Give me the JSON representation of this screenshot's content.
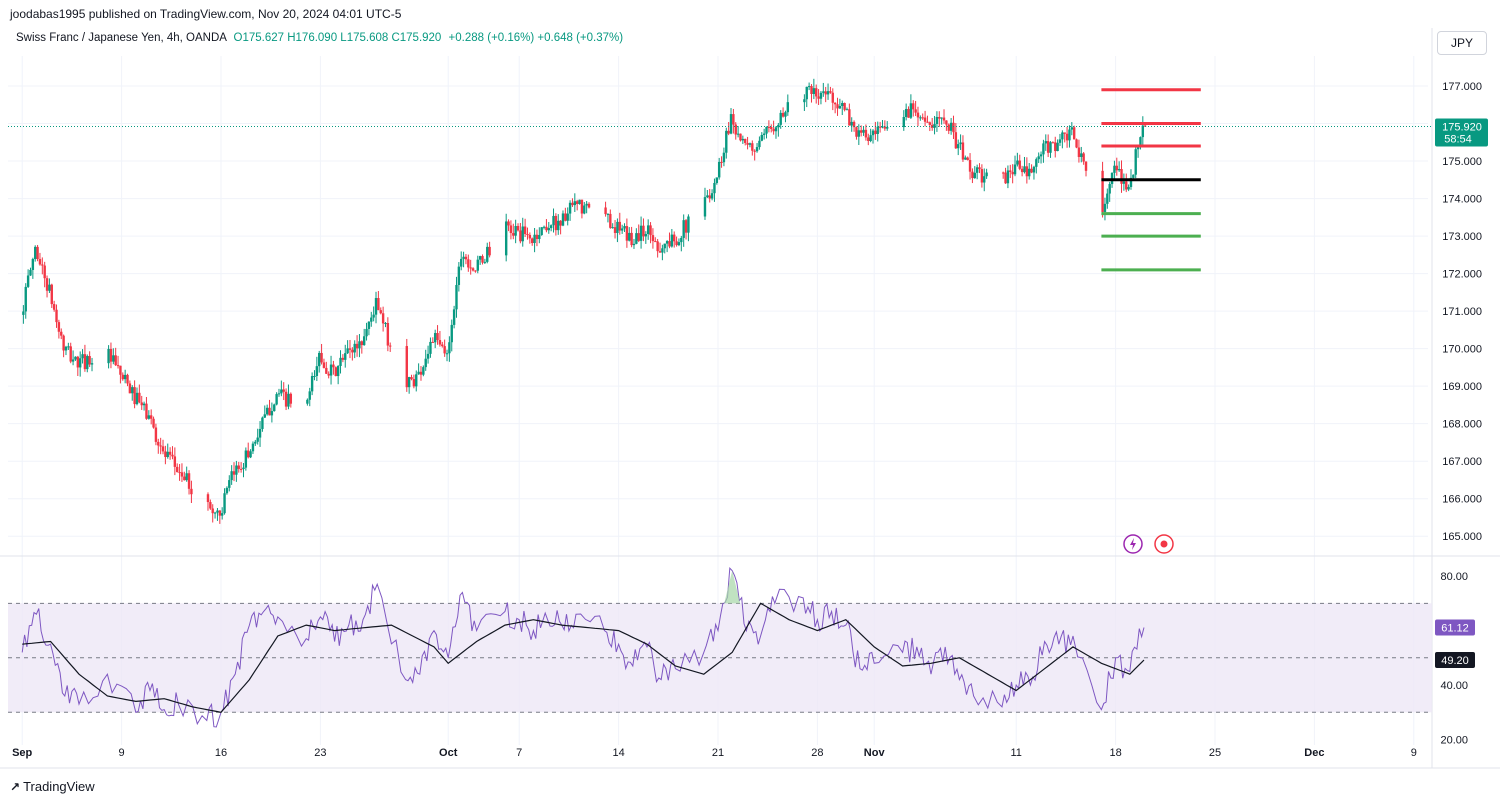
{
  "header": {
    "publisher_line": "joodabas1995 published on TradingView.com, Nov 20, 2024 04:01 UTC-5"
  },
  "legend": {
    "symbol": "Swiss Franc / Japanese Yen, 4h, OANDA",
    "ohlc": "O175.627 H176.090 L175.608 C175.920",
    "change": "+0.288 (+0.16%) +0.648 (+0.37%)"
  },
  "currency_button": "JPY",
  "footer": {
    "brand": "TradingView"
  },
  "colors": {
    "up": "#089981",
    "down": "#f23645",
    "rsi": "#7e57c2",
    "rsi_ma": "#131722",
    "rsi_band": "#ede7f6",
    "level_red": "#f23645",
    "level_green": "#4caf50",
    "level_black": "#000000"
  },
  "icons": [
    "lightning-icon",
    "record-icon",
    "tradingview-logo-icon"
  ],
  "chart_data": [
    {
      "type": "candlestick",
      "title": "",
      "symbol": "CHFJPY",
      "timeframe": "4h",
      "ylim": [
        164.5,
        177.8
      ],
      "y_ticks": [
        "165.000",
        "166.000",
        "167.000",
        "168.000",
        "169.000",
        "170.000",
        "171.000",
        "172.000",
        "173.000",
        "174.000",
        "175.000",
        "176.000",
        "177.000"
      ],
      "x_ticks": [
        "Sep",
        "9",
        "16",
        "23",
        "Oct",
        "7",
        "14",
        "21",
        "28",
        "Nov",
        "11",
        "18",
        "25",
        "Dec",
        "9"
      ],
      "last_price": {
        "value": "175.920",
        "countdown": "58:54"
      },
      "path_anchors": [
        {
          "x": "2024-09-02",
          "y": 170.9
        },
        {
          "x": "2024-09-03",
          "y": 172.7
        },
        {
          "x": "2024-09-04",
          "y": 171.5
        },
        {
          "x": "2024-09-05",
          "y": 170.0
        },
        {
          "x": "2024-09-06",
          "y": 169.6
        },
        {
          "x": "2024-09-08",
          "y": 169.9
        },
        {
          "x": "2024-09-10",
          "y": 168.7
        },
        {
          "x": "2024-09-11",
          "y": 168.2
        },
        {
          "x": "2024-09-12",
          "y": 167.2
        },
        {
          "x": "2024-09-13",
          "y": 166.8
        },
        {
          "x": "2024-09-15",
          "y": 165.8
        },
        {
          "x": "2024-09-16",
          "y": 165.6
        },
        {
          "x": "2024-09-17",
          "y": 166.7
        },
        {
          "x": "2024-09-18",
          "y": 167.2
        },
        {
          "x": "2024-09-19",
          "y": 168.0
        },
        {
          "x": "2024-09-20",
          "y": 168.8
        },
        {
          "x": "2024-09-22",
          "y": 168.3
        },
        {
          "x": "2024-09-23",
          "y": 169.8
        },
        {
          "x": "2024-09-24",
          "y": 169.3
        },
        {
          "x": "2024-09-25",
          "y": 169.9
        },
        {
          "x": "2024-09-26",
          "y": 170.2
        },
        {
          "x": "2024-09-27",
          "y": 171.2
        },
        {
          "x": "2024-09-29",
          "y": 169.0
        },
        {
          "x": "2024-09-30",
          "y": 169.3
        },
        {
          "x": "2024-10-01",
          "y": 170.3
        },
        {
          "x": "2024-10-02",
          "y": 169.8
        },
        {
          "x": "2024-10-03",
          "y": 172.6
        },
        {
          "x": "2024-10-04",
          "y": 172.1
        },
        {
          "x": "2024-10-06",
          "y": 173.2
        },
        {
          "x": "2024-10-07",
          "y": 173.1
        },
        {
          "x": "2024-10-08",
          "y": 172.9
        },
        {
          "x": "2024-10-09",
          "y": 173.3
        },
        {
          "x": "2024-10-10",
          "y": 173.4
        },
        {
          "x": "2024-10-11",
          "y": 173.8
        },
        {
          "x": "2024-10-13",
          "y": 173.6
        },
        {
          "x": "2024-10-14",
          "y": 173.2
        },
        {
          "x": "2024-10-15",
          "y": 172.9
        },
        {
          "x": "2024-10-16",
          "y": 173.2
        },
        {
          "x": "2024-10-17",
          "y": 172.7
        },
        {
          "x": "2024-10-18",
          "y": 172.9
        },
        {
          "x": "2024-10-20",
          "y": 173.8
        },
        {
          "x": "2024-10-21",
          "y": 174.6
        },
        {
          "x": "2024-10-22",
          "y": 176.2
        },
        {
          "x": "2024-10-23",
          "y": 175.3
        },
        {
          "x": "2024-10-24",
          "y": 175.4
        },
        {
          "x": "2024-10-25",
          "y": 176.0
        },
        {
          "x": "2024-10-27",
          "y": 176.9
        },
        {
          "x": "2024-10-28",
          "y": 176.7
        },
        {
          "x": "2024-10-29",
          "y": 176.8
        },
        {
          "x": "2024-10-30",
          "y": 176.3
        },
        {
          "x": "2024-10-31",
          "y": 175.7
        },
        {
          "x": "2024-11-01",
          "y": 175.6
        },
        {
          "x": "2024-11-03",
          "y": 176.2
        },
        {
          "x": "2024-11-04",
          "y": 176.5
        },
        {
          "x": "2024-11-05",
          "y": 175.8
        },
        {
          "x": "2024-11-06",
          "y": 176.3
        },
        {
          "x": "2024-11-07",
          "y": 175.4
        },
        {
          "x": "2024-11-08",
          "y": 174.7
        },
        {
          "x": "2024-11-10",
          "y": 174.4
        },
        {
          "x": "2024-11-11",
          "y": 174.9
        },
        {
          "x": "2024-11-12",
          "y": 174.6
        },
        {
          "x": "2024-11-13",
          "y": 175.3
        },
        {
          "x": "2024-11-14",
          "y": 175.5
        },
        {
          "x": "2024-11-15",
          "y": 175.7
        },
        {
          "x": "2024-11-17",
          "y": 173.7
        },
        {
          "x": "2024-11-18",
          "y": 174.7
        },
        {
          "x": "2024-11-19",
          "y": 174.3
        },
        {
          "x": "2024-11-20",
          "y": 175.92
        }
      ],
      "levels": [
        {
          "price": 176.9,
          "color": "red",
          "from": "2024-11-17",
          "to": "2024-11-24"
        },
        {
          "price": 176.0,
          "color": "red",
          "from": "2024-11-17",
          "to": "2024-11-24"
        },
        {
          "price": 175.4,
          "color": "red",
          "from": "2024-11-17",
          "to": "2024-11-24"
        },
        {
          "price": 174.5,
          "color": "black",
          "from": "2024-11-17",
          "to": "2024-11-24"
        },
        {
          "price": 173.6,
          "color": "green",
          "from": "2024-11-17",
          "to": "2024-11-24"
        },
        {
          "price": 173.0,
          "color": "green",
          "from": "2024-11-17",
          "to": "2024-11-24"
        },
        {
          "price": 172.1,
          "color": "green",
          "from": "2024-11-17",
          "to": "2024-11-24"
        }
      ]
    },
    {
      "type": "line",
      "title": "",
      "ylim": [
        18,
        87
      ],
      "y_ticks": [
        "20.00",
        "40.00",
        "60.00",
        "80.00"
      ],
      "band": {
        "upper": 70,
        "middle": 50,
        "lower": 30
      },
      "last_values": {
        "rsi": "61.12",
        "rsi_ma": "49.20"
      },
      "series": [
        {
          "values": [
            {
              "x": "2024-09-02",
              "y": 52
            },
            {
              "x": "2024-09-03",
              "y": 66
            },
            {
              "x": "2024-09-04",
              "y": 55
            },
            {
              "x": "2024-09-05",
              "y": 36
            },
            {
              "x": "2024-09-06",
              "y": 33
            },
            {
              "x": "2024-09-08",
              "y": 44
            },
            {
              "x": "2024-09-10",
              "y": 30
            },
            {
              "x": "2024-09-11",
              "y": 38
            },
            {
              "x": "2024-09-12",
              "y": 31
            },
            {
              "x": "2024-09-13",
              "y": 33
            },
            {
              "x": "2024-09-15",
              "y": 27
            },
            {
              "x": "2024-09-16",
              "y": 30
            },
            {
              "x": "2024-09-17",
              "y": 44
            },
            {
              "x": "2024-09-18",
              "y": 62
            },
            {
              "x": "2024-09-19",
              "y": 67
            },
            {
              "x": "2024-09-20",
              "y": 65
            },
            {
              "x": "2024-09-22",
              "y": 57
            },
            {
              "x": "2024-09-23",
              "y": 65
            },
            {
              "x": "2024-09-24",
              "y": 56
            },
            {
              "x": "2024-09-25",
              "y": 62
            },
            {
              "x": "2024-09-26",
              "y": 64
            },
            {
              "x": "2024-09-27",
              "y": 77
            },
            {
              "x": "2024-09-29",
              "y": 42
            },
            {
              "x": "2024-09-30",
              "y": 44
            },
            {
              "x": "2024-10-01",
              "y": 60
            },
            {
              "x": "2024-10-02",
              "y": 50
            },
            {
              "x": "2024-10-03",
              "y": 74
            },
            {
              "x": "2024-10-04",
              "y": 60
            },
            {
              "x": "2024-10-06",
              "y": 67
            },
            {
              "x": "2024-10-07",
              "y": 64
            },
            {
              "x": "2024-10-08",
              "y": 60
            },
            {
              "x": "2024-10-09",
              "y": 64
            },
            {
              "x": "2024-10-10",
              "y": 62
            },
            {
              "x": "2024-10-11",
              "y": 66
            },
            {
              "x": "2024-10-13",
              "y": 60
            },
            {
              "x": "2024-10-14",
              "y": 55
            },
            {
              "x": "2024-10-15",
              "y": 47
            },
            {
              "x": "2024-10-16",
              "y": 54
            },
            {
              "x": "2024-10-17",
              "y": 42
            },
            {
              "x": "2024-10-18",
              "y": 46
            },
            {
              "x": "2024-10-20",
              "y": 52
            },
            {
              "x": "2024-10-21",
              "y": 60
            },
            {
              "x": "2024-10-22",
              "y": 82
            },
            {
              "x": "2024-10-23",
              "y": 60
            },
            {
              "x": "2024-10-24",
              "y": 58
            },
            {
              "x": "2024-10-25",
              "y": 70
            },
            {
              "x": "2024-10-27",
              "y": 72
            },
            {
              "x": "2024-10-28",
              "y": 64
            },
            {
              "x": "2024-10-29",
              "y": 67
            },
            {
              "x": "2024-10-30",
              "y": 62
            },
            {
              "x": "2024-10-31",
              "y": 46
            },
            {
              "x": "2024-11-01",
              "y": 48
            },
            {
              "x": "2024-11-03",
              "y": 52
            },
            {
              "x": "2024-11-04",
              "y": 54
            },
            {
              "x": "2024-11-05",
              "y": 44
            },
            {
              "x": "2024-11-06",
              "y": 54
            },
            {
              "x": "2024-11-07",
              "y": 42
            },
            {
              "x": "2024-11-08",
              "y": 36
            },
            {
              "x": "2024-11-10",
              "y": 32
            },
            {
              "x": "2024-11-11",
              "y": 40
            },
            {
              "x": "2024-11-12",
              "y": 40
            },
            {
              "x": "2024-11-13",
              "y": 56
            },
            {
              "x": "2024-11-14",
              "y": 55
            },
            {
              "x": "2024-11-15",
              "y": 58
            },
            {
              "x": "2024-11-17",
              "y": 31
            },
            {
              "x": "2024-11-18",
              "y": 50
            },
            {
              "x": "2024-11-19",
              "y": 45
            },
            {
              "x": "2024-11-20",
              "y": 61.12
            }
          ]
        },
        {
          "values": [
            {
              "x": "2024-09-02",
              "y": 55
            },
            {
              "x": "2024-09-04",
              "y": 56
            },
            {
              "x": "2024-09-06",
              "y": 44
            },
            {
              "x": "2024-09-08",
              "y": 36
            },
            {
              "x": "2024-09-10",
              "y": 34
            },
            {
              "x": "2024-09-12",
              "y": 35
            },
            {
              "x": "2024-09-14",
              "y": 32
            },
            {
              "x": "2024-09-16",
              "y": 30
            },
            {
              "x": "2024-09-18",
              "y": 42
            },
            {
              "x": "2024-09-20",
              "y": 58
            },
            {
              "x": "2024-09-22",
              "y": 62
            },
            {
              "x": "2024-09-24",
              "y": 60
            },
            {
              "x": "2024-09-26",
              "y": 61
            },
            {
              "x": "2024-09-28",
              "y": 62
            },
            {
              "x": "2024-10-01",
              "y": 54
            },
            {
              "x": "2024-10-02",
              "y": 48
            },
            {
              "x": "2024-10-04",
              "y": 56
            },
            {
              "x": "2024-10-06",
              "y": 62
            },
            {
              "x": "2024-10-08",
              "y": 64
            },
            {
              "x": "2024-10-10",
              "y": 62
            },
            {
              "x": "2024-10-12",
              "y": 61
            },
            {
              "x": "2024-10-14",
              "y": 60
            },
            {
              "x": "2024-10-16",
              "y": 55
            },
            {
              "x": "2024-10-18",
              "y": 47
            },
            {
              "x": "2024-10-20",
              "y": 44
            },
            {
              "x": "2024-10-22",
              "y": 52
            },
            {
              "x": "2024-10-24",
              "y": 70
            },
            {
              "x": "2024-10-26",
              "y": 64
            },
            {
              "x": "2024-10-28",
              "y": 60
            },
            {
              "x": "2024-10-30",
              "y": 64
            },
            {
              "x": "2024-11-01",
              "y": 54
            },
            {
              "x": "2024-11-03",
              "y": 47
            },
            {
              "x": "2024-11-05",
              "y": 48
            },
            {
              "x": "2024-11-07",
              "y": 50
            },
            {
              "x": "2024-11-09",
              "y": 44
            },
            {
              "x": "2024-11-11",
              "y": 38
            },
            {
              "x": "2024-11-13",
              "y": 46
            },
            {
              "x": "2024-11-15",
              "y": 54
            },
            {
              "x": "2024-11-17",
              "y": 48
            },
            {
              "x": "2024-11-19",
              "y": 44
            },
            {
              "x": "2024-11-20",
              "y": 49.2
            }
          ]
        }
      ]
    }
  ]
}
